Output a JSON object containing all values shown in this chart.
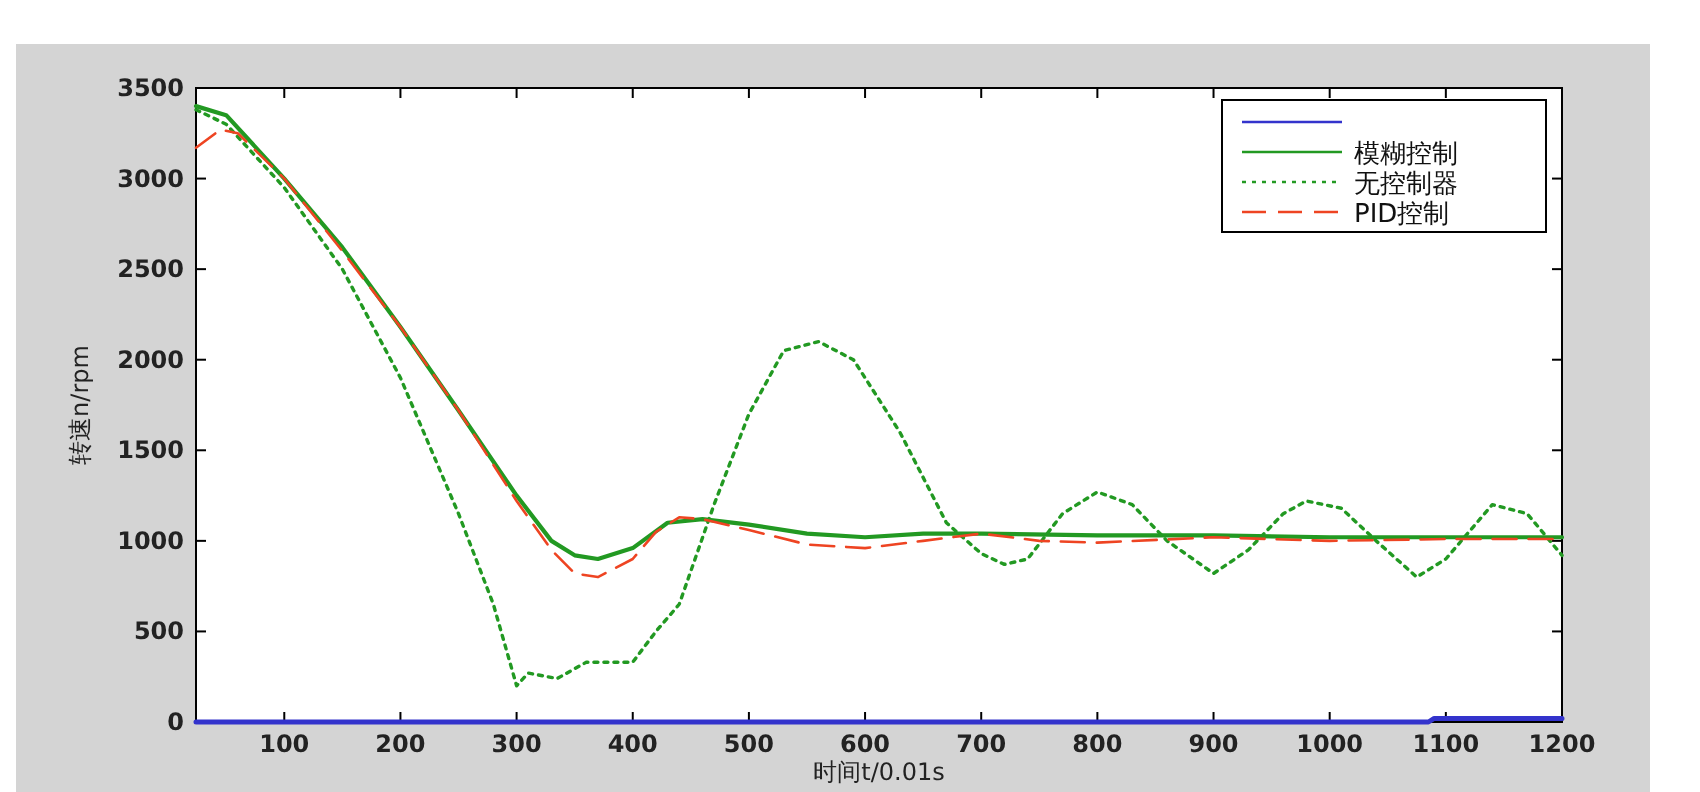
{
  "chart_data": {
    "type": "line",
    "xlabel": "时间t/0.01s",
    "ylabel": "转速n/rpm",
    "xlim": [
      24,
      1200
    ],
    "ylim": [
      0,
      3500
    ],
    "xticks": [
      100,
      200,
      300,
      400,
      500,
      600,
      700,
      800,
      900,
      1000,
      1100,
      1200
    ],
    "yticks": [
      0,
      500,
      1000,
      1500,
      2000,
      2500,
      3000,
      3500
    ],
    "legend": "top right",
    "grid": false,
    "marker": "none",
    "series": [
      {
        "color": "#3333cc",
        "line_style": "solid",
        "x": [
          24,
          1085,
          1090,
          1200
        ],
        "values": [
          0,
          0,
          20,
          20
        ]
      },
      {
        "name": "模糊控制",
        "color": "#229922",
        "line_style": "solid",
        "x": [
          24,
          50,
          100,
          150,
          200,
          250,
          300,
          330,
          350,
          370,
          400,
          430,
          460,
          500,
          550,
          600,
          650,
          700,
          800,
          900,
          1000,
          1100,
          1200
        ],
        "values": [
          3400,
          3350,
          3000,
          2620,
          2180,
          1720,
          1250,
          1000,
          920,
          900,
          960,
          1100,
          1120,
          1090,
          1040,
          1020,
          1040,
          1040,
          1030,
          1030,
          1020,
          1020,
          1020
        ]
      },
      {
        "name": "无控制器",
        "color": "#229922",
        "line_style": "dotted",
        "x": [
          24,
          50,
          100,
          150,
          200,
          250,
          280,
          300,
          310,
          335,
          360,
          400,
          420,
          440,
          470,
          500,
          530,
          560,
          590,
          630,
          670,
          700,
          720,
          740,
          770,
          800,
          830,
          860,
          900,
          930,
          960,
          980,
          1010,
          1040,
          1075,
          1100,
          1140,
          1170,
          1200
        ],
        "values": [
          3380,
          3300,
          2950,
          2500,
          1900,
          1150,
          650,
          200,
          270,
          240,
          330,
          330,
          500,
          650,
          1200,
          1700,
          2050,
          2100,
          2000,
          1600,
          1100,
          930,
          870,
          900,
          1150,
          1270,
          1200,
          1000,
          820,
          950,
          1150,
          1220,
          1180,
          1000,
          800,
          900,
          1200,
          1150,
          920
        ]
      },
      {
        "name": "PID控制",
        "color": "#ee4422",
        "line_style": "dashed",
        "x": [
          24,
          45,
          60,
          100,
          150,
          200,
          250,
          300,
          330,
          350,
          370,
          400,
          420,
          440,
          460,
          500,
          550,
          600,
          650,
          700,
          750,
          800,
          900,
          1000,
          1100,
          1200
        ],
        "values": [
          3170,
          3270,
          3250,
          3000,
          2600,
          2180,
          1720,
          1220,
          950,
          820,
          800,
          900,
          1050,
          1130,
          1120,
          1060,
          980,
          960,
          1000,
          1040,
          1000,
          990,
          1020,
          1000,
          1010,
          1010
        ]
      }
    ]
  }
}
